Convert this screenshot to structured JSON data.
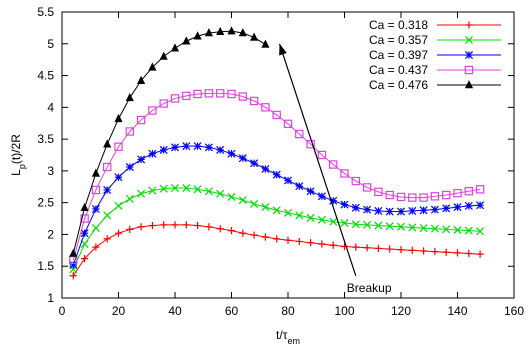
{
  "chart_data": {
    "type": "line",
    "title": "",
    "xlabel": "t/τ",
    "xlabel_sub": "em",
    "ylabel": "L",
    "ylabel_sub": "p",
    "ylabel_rest": "(t)/2R",
    "xlim": [
      0,
      160
    ],
    "ylim": [
      1,
      5.5
    ],
    "xticks": [
      0,
      20,
      40,
      60,
      80,
      100,
      120,
      140,
      160
    ],
    "yticks": [
      1,
      1.5,
      2,
      2.5,
      3,
      3.5,
      4,
      4.5,
      5,
      5.5
    ],
    "grid": false,
    "legend_position": "top-right",
    "annotation": {
      "text": "Breakup",
      "from": [
        104,
        1.35
      ],
      "to": [
        77,
        5.0
      ]
    },
    "series": [
      {
        "name": "Ca = 0.318",
        "color": "#ff0000",
        "marker": "plus",
        "every": 1,
        "x": [
          4,
          8,
          12,
          16,
          20,
          24,
          28,
          32,
          36,
          40,
          44,
          48,
          52,
          56,
          60,
          64,
          68,
          72,
          76,
          80,
          84,
          88,
          92,
          96,
          100,
          104,
          108,
          112,
          116,
          120,
          124,
          128,
          132,
          136,
          140,
          144,
          148
        ],
        "y": [
          1.35,
          1.62,
          1.8,
          1.93,
          2.02,
          2.08,
          2.12,
          2.14,
          2.15,
          2.15,
          2.15,
          2.14,
          2.12,
          2.09,
          2.06,
          2.02,
          1.99,
          1.96,
          1.93,
          1.91,
          1.89,
          1.87,
          1.85,
          1.83,
          1.81,
          1.8,
          1.79,
          1.78,
          1.77,
          1.76,
          1.75,
          1.74,
          1.73,
          1.72,
          1.71,
          1.7,
          1.69
        ]
      },
      {
        "name": "Ca = 0.357",
        "color": "#00dd00",
        "marker": "cross",
        "every": 1,
        "x": [
          4,
          8,
          12,
          16,
          20,
          24,
          28,
          32,
          36,
          40,
          44,
          48,
          52,
          56,
          60,
          64,
          68,
          72,
          76,
          80,
          84,
          88,
          92,
          96,
          100,
          104,
          108,
          112,
          116,
          120,
          124,
          128,
          132,
          136,
          140,
          144,
          148
        ],
        "y": [
          1.45,
          1.85,
          2.1,
          2.3,
          2.45,
          2.56,
          2.64,
          2.69,
          2.72,
          2.73,
          2.73,
          2.71,
          2.68,
          2.64,
          2.59,
          2.54,
          2.48,
          2.43,
          2.38,
          2.34,
          2.3,
          2.26,
          2.23,
          2.2,
          2.18,
          2.16,
          2.15,
          2.14,
          2.13,
          2.12,
          2.11,
          2.1,
          2.09,
          2.08,
          2.07,
          2.06,
          2.05
        ]
      },
      {
        "name": "Ca = 0.397",
        "color": "#0000ff",
        "marker": "star",
        "every": 1,
        "x": [
          4,
          8,
          12,
          16,
          20,
          24,
          28,
          32,
          36,
          40,
          44,
          48,
          52,
          56,
          60,
          64,
          68,
          72,
          76,
          80,
          84,
          88,
          92,
          96,
          100,
          104,
          108,
          112,
          116,
          120,
          124,
          128,
          132,
          136,
          140,
          144,
          148
        ],
        "y": [
          1.52,
          2.02,
          2.4,
          2.7,
          2.9,
          3.06,
          3.18,
          3.27,
          3.33,
          3.37,
          3.39,
          3.39,
          3.37,
          3.33,
          3.27,
          3.2,
          3.12,
          3.03,
          2.94,
          2.85,
          2.76,
          2.68,
          2.6,
          2.53,
          2.47,
          2.42,
          2.39,
          2.37,
          2.36,
          2.36,
          2.37,
          2.38,
          2.39,
          2.41,
          2.43,
          2.45,
          2.46
        ]
      },
      {
        "name": "Ca = 0.437",
        "color": "#dd44dd",
        "marker": "square",
        "every": 1,
        "x": [
          4,
          8,
          12,
          16,
          20,
          24,
          28,
          32,
          36,
          40,
          44,
          48,
          52,
          56,
          60,
          64,
          68,
          72,
          76,
          80,
          84,
          88,
          92,
          96,
          100,
          104,
          108,
          112,
          116,
          120,
          124,
          128,
          132,
          136,
          140,
          144,
          148
        ],
        "y": [
          1.6,
          2.25,
          2.7,
          3.06,
          3.38,
          3.62,
          3.8,
          3.95,
          4.06,
          4.14,
          4.18,
          4.21,
          4.22,
          4.22,
          4.21,
          4.17,
          4.1,
          4.0,
          3.88,
          3.74,
          3.58,
          3.42,
          3.25,
          3.1,
          2.96,
          2.84,
          2.74,
          2.67,
          2.62,
          2.59,
          2.58,
          2.58,
          2.6,
          2.62,
          2.65,
          2.68,
          2.71
        ]
      },
      {
        "name": "Ca = 0.476",
        "color": "#000000",
        "marker": "triangle",
        "every": 1,
        "x": [
          4,
          8,
          12,
          16,
          20,
          24,
          28,
          32,
          36,
          40,
          44,
          48,
          52,
          56,
          60,
          64,
          68,
          72
        ],
        "y": [
          1.7,
          2.42,
          2.96,
          3.42,
          3.82,
          4.15,
          4.42,
          4.63,
          4.8,
          4.93,
          5.04,
          5.12,
          5.17,
          5.19,
          5.2,
          5.17,
          5.1,
          4.99
        ]
      }
    ]
  }
}
